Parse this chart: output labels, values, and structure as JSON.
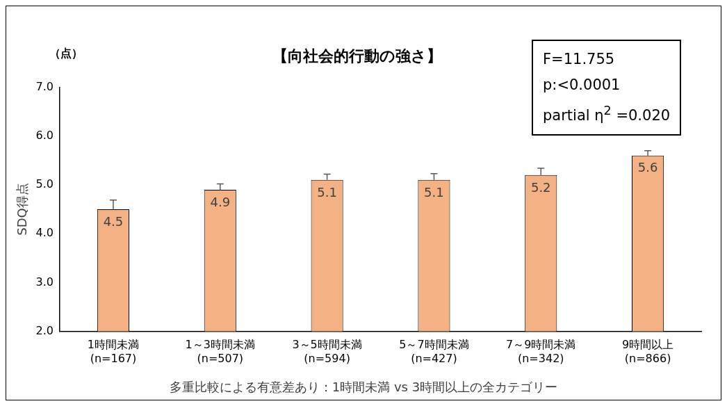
{
  "chart_data": {
    "type": "bar",
    "title": "【向社会的行動の強さ】",
    "ylabel": "SDQ得点",
    "categories": [
      "1時間未満\n(n=167)",
      "1～3時間未満\n(n=507)",
      "3～5時間未満\n(n=594)",
      "5～7時間未満\n(n=427)",
      "7～9時間未満\n(n=342)",
      "9時間以上\n(n=866)"
    ],
    "values": [
      4.5,
      4.9,
      5.1,
      5.1,
      5.2,
      5.6
    ],
    "errors": [
      0.19,
      0.12,
      0.12,
      0.13,
      0.14,
      0.1
    ],
    "color": "#f4b183",
    "data_labels": true,
    "grid": false,
    "legend": false,
    "ylim": [
      2,
      7
    ],
    "yticks": [
      {
        "value": 2,
        "label": "2.0"
      },
      {
        "value": 3,
        "label": "3.0"
      },
      {
        "value": 4,
        "label": "4.0"
      },
      {
        "value": 5,
        "label": "5.0"
      },
      {
        "value": 6,
        "label": "6.0"
      },
      {
        "value": 7,
        "label": "7.0"
      }
    ],
    "annotations": [
      "（点）",
      "F=11.755\np:<0.0001\npartial η$^{2}$ =0.020",
      "多重比較による有意差あり：1時間未満 vs 3時間以上の全カテゴリー"
    ]
  }
}
